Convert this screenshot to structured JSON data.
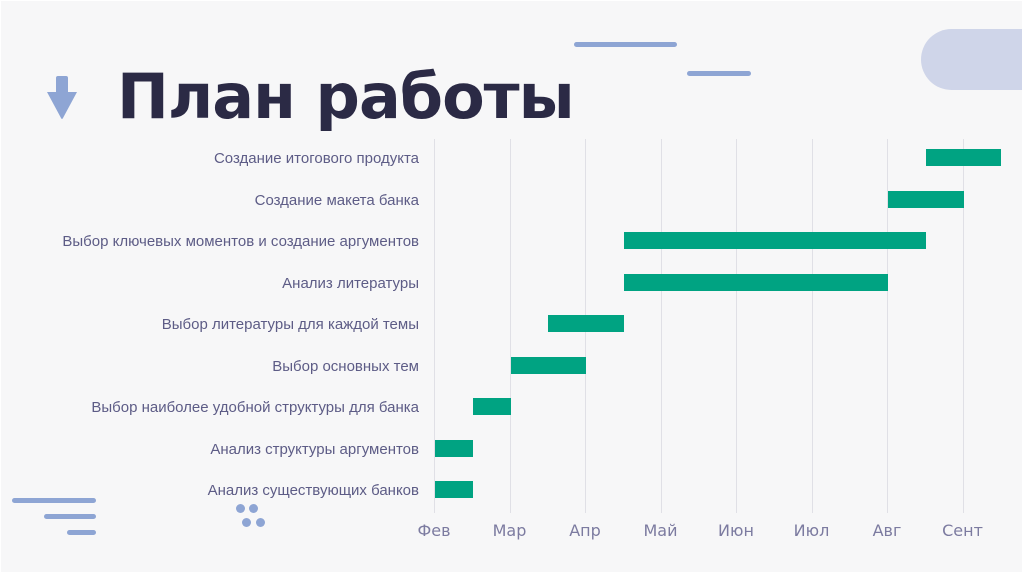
{
  "slide": {
    "title": "План работы",
    "icons": [
      "arrow-down-icon",
      "decorative-lines",
      "decorative-dots",
      "decorative-pill"
    ]
  },
  "colors": {
    "title": "#2b2a45",
    "bar": "#00a382",
    "label": "#5d5c86",
    "accent": "#8ea5d4",
    "pill": "#cfd5e9",
    "background": "#f7f7f8"
  },
  "chart_data": {
    "type": "gantt",
    "title": "План работы",
    "xlabel": "",
    "ylabel": "",
    "x_ticks": [
      "Фев",
      "Мар",
      "Апр",
      "Май",
      "Июн",
      "Июл",
      "Авг",
      "Сент"
    ],
    "x_unit": "months from start of Фев (0 = Фев, 7 = Сент)",
    "grid": true,
    "legend": null,
    "tasks": [
      {
        "label": "Создание итогового продукта",
        "start": 6.5,
        "end": 7.5
      },
      {
        "label": "Создание макета банка",
        "start": 6.0,
        "end": 7.0
      },
      {
        "label": "Выбор ключевых моментов и создание аргументов",
        "start": 2.5,
        "end": 6.5
      },
      {
        "label": "Анализ литературы",
        "start": 2.5,
        "end": 6.0
      },
      {
        "label": "Выбор литературы для каждой темы",
        "start": 1.5,
        "end": 2.5
      },
      {
        "label": "Выбор основных тем",
        "start": 1.0,
        "end": 2.0
      },
      {
        "label": "Выбор наиболее удобной структуры для банка",
        "start": 0.5,
        "end": 1.0
      },
      {
        "label": "Анализ структуры аргументов",
        "start": 0.0,
        "end": 0.5
      },
      {
        "label": "Анализ существующих банков",
        "start": 0.0,
        "end": 0.5
      }
    ]
  }
}
